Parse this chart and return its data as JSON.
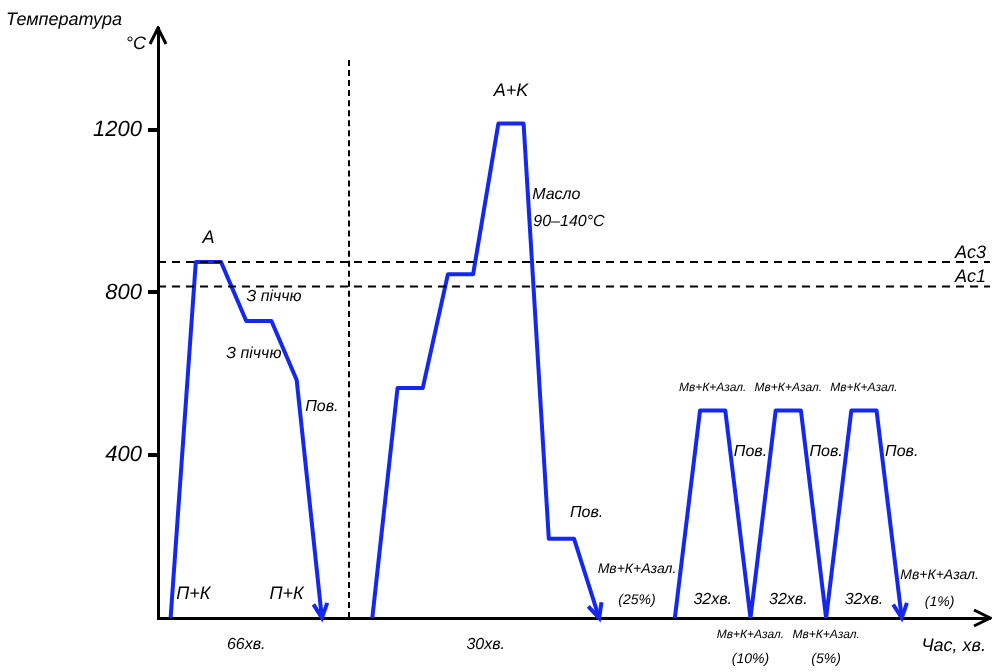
{
  "chart_data": {
    "type": "line",
    "ylabel": "Температура °С",
    "xlabel": "Час, хв.",
    "ylim": [
      0,
      1450
    ],
    "yticks": [
      400,
      800,
      1200
    ],
    "tick_labels": "y",
    "grid": false,
    "legend": false,
    "marker": "none",
    "line_style": "solid",
    "categories": [
      null,
      null,
      null,
      null,
      null,
      null,
      null,
      null,
      null,
      null,
      null,
      null,
      null,
      null,
      null,
      null,
      null,
      null,
      null,
      null,
      null,
      null,
      null,
      null,
      null,
      null,
      null,
      null,
      null,
      null,
      null,
      null,
      null
    ],
    "series": [
      {
        "color": "#1428f0",
        "values": [
          0,
          875,
          875,
          730,
          730,
          585,
          0,
          null,
          null,
          null,
          null,
          null,
          null,
          null,
          null,
          null,
          null,
          null,
          null,
          null,
          null,
          null,
          null,
          null,
          null,
          null,
          null,
          null,
          null,
          null,
          null,
          null,
          null
        ]
      },
      {
        "color": "#1428f0",
        "values": [
          null,
          null,
          null,
          null,
          null,
          null,
          null,
          null,
          0,
          565,
          565,
          845,
          845,
          1215,
          1215,
          195,
          195,
          0,
          null,
          null,
          null,
          null,
          null,
          null,
          null,
          null,
          null,
          null,
          null,
          null,
          null,
          null,
          null
        ]
      },
      {
        "color": "#1428f0",
        "values": [
          null,
          null,
          null,
          null,
          null,
          null,
          null,
          null,
          null,
          null,
          null,
          null,
          null,
          null,
          null,
          null,
          null,
          null,
          null,
          null,
          0,
          510,
          510,
          0,
          510,
          510,
          0,
          510,
          510,
          0,
          null,
          null,
          null
        ]
      }
    ],
    "ref_lines": [
      {
        "axis": "y",
        "value": 875,
        "label": "Ac3",
        "line_style": "dashed",
        "color": "#000000"
      },
      {
        "axis": "y",
        "value": 815,
        "label": "Ac1",
        "line_style": "dashed",
        "color": "#000000"
      }
    ],
    "annotations": [
      "A",
      "З піччю",
      "З піччю",
      "Пов.",
      "П+К",
      "П+К",
      "66хв.",
      "30хв.",
      "A+K",
      "Масло",
      "90–140°С",
      "Пов.",
      "Мв+К+Азал.",
      "(25%)",
      "Мв+К+Азал.",
      "Мв+К+Азал.",
      "Мв+К+Азал.",
      "Пов.",
      "Пов.",
      "Пов.",
      "32хв.",
      "32хв.",
      "32хв.",
      "Мв+К+Азал.",
      "(10%)",
      "Мв+К+Азал.",
      "(5%)",
      "Мв+К+Азал.",
      "(1%)"
    ]
  }
}
